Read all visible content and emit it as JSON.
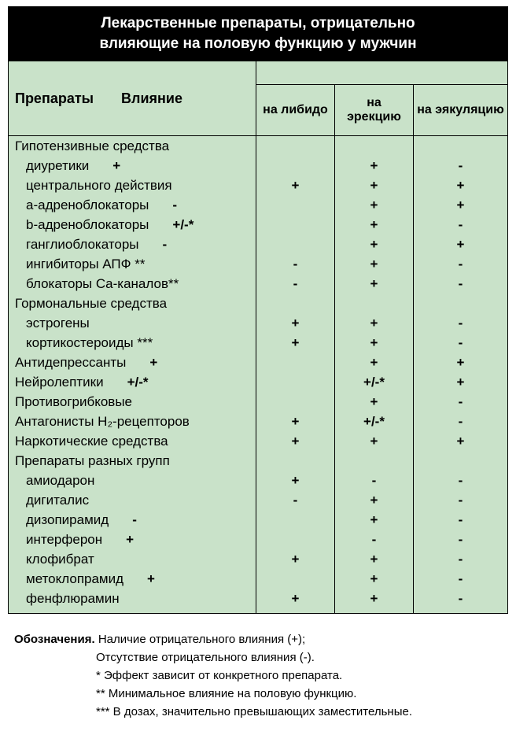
{
  "title_line1": "Лекарственные препараты, отрицательно",
  "title_line2": "влияющие на половую функцию у мужчин",
  "header": {
    "drugs": "Препараты",
    "influence": "Влияние",
    "libido": "на либидо",
    "erection": "на эрекцию",
    "ejaculation": "на эякуляцию"
  },
  "colors": {
    "table_bg": "#c9e2c9",
    "title_bg": "#000000",
    "title_fg": "#ffffff",
    "border": "#000000"
  },
  "rows": [
    {
      "name": "Гипотензивные средства",
      "group": true,
      "indent": false,
      "inline": "",
      "lib": "",
      "ere": "",
      "eja": ""
    },
    {
      "name": "диуретики",
      "group": false,
      "indent": true,
      "inline": "+",
      "lib": "",
      "ere": "+",
      "eja": "-"
    },
    {
      "name": "центрального действия",
      "group": false,
      "indent": true,
      "inline": "",
      "lib": "+",
      "ere": "+",
      "eja": "+"
    },
    {
      "name": "a-адреноблокаторы",
      "group": false,
      "indent": true,
      "inline": "-",
      "lib": "",
      "ere": "+",
      "eja": "+"
    },
    {
      "name": "b-адреноблокаторы",
      "group": false,
      "indent": true,
      "inline": "+/-*",
      "lib": "",
      "ere": "+",
      "eja": "-"
    },
    {
      "name": "ганглиоблокаторы",
      "group": false,
      "indent": true,
      "inline": "-",
      "lib": "",
      "ere": "+",
      "eja": "+"
    },
    {
      "name": "ингибиторы АПФ **",
      "group": false,
      "indent": true,
      "inline": "",
      "lib": "-",
      "ere": "+",
      "eja": "-"
    },
    {
      "name": "блокаторы Ca-каналов**",
      "group": false,
      "indent": true,
      "inline": "",
      "lib": "-",
      "ere": "+",
      "eja": "-"
    },
    {
      "name": "Гормональные средства",
      "group": true,
      "indent": false,
      "inline": "",
      "lib": "",
      "ere": "",
      "eja": ""
    },
    {
      "name": "эстрогены",
      "group": false,
      "indent": true,
      "inline": "",
      "lib": "+",
      "ere": "+",
      "eja": "-"
    },
    {
      "name": "кортикостероиды ***",
      "group": false,
      "indent": true,
      "inline": "",
      "lib": "+",
      "ere": "+",
      "eja": "-"
    },
    {
      "name": "Антидепрессанты",
      "group": false,
      "indent": false,
      "inline": "+",
      "lib": "",
      "ere": "+",
      "eja": "+"
    },
    {
      "name": "Нейролептики",
      "group": false,
      "indent": false,
      "inline": "+/-*",
      "lib": "",
      "ere": "+/-*",
      "eja": "+"
    },
    {
      "name": "Противогрибковые",
      "group": false,
      "indent": false,
      "inline": "",
      "lib": "",
      "ere": "+",
      "eja": "-"
    },
    {
      "name": "Антагонисты H₂-рецепторов",
      "group": false,
      "indent": false,
      "inline": "",
      "lib": "+",
      "ere": "+/-*",
      "eja": "-"
    },
    {
      "name": "Наркотические средства",
      "group": false,
      "indent": false,
      "inline": "",
      "lib": "+",
      "ere": "+",
      "eja": "+"
    },
    {
      "name": "Препараты разных групп",
      "group": true,
      "indent": false,
      "inline": "",
      "lib": "",
      "ere": "",
      "eja": ""
    },
    {
      "name": "амиодарон",
      "group": false,
      "indent": true,
      "inline": "",
      "lib": "+",
      "ere": "-",
      "eja": "-"
    },
    {
      "name": "дигиталис",
      "group": false,
      "indent": true,
      "inline": "",
      "lib": "-",
      "ere": "+",
      "eja": "-"
    },
    {
      "name": "дизопирамид",
      "group": false,
      "indent": true,
      "inline": "-",
      "lib": "",
      "ere": "+",
      "eja": "-"
    },
    {
      "name": "интерферон",
      "group": false,
      "indent": true,
      "inline": "+",
      "lib": "",
      "ere": "-",
      "eja": "-"
    },
    {
      "name": "клофибрат",
      "group": false,
      "indent": true,
      "inline": "",
      "lib": "+",
      "ere": "+",
      "eja": "-"
    },
    {
      "name": "метоклопрамид",
      "group": false,
      "indent": true,
      "inline": "+",
      "lib": "",
      "ere": "+",
      "eja": "-"
    },
    {
      "name": "фенфлюрамин",
      "group": false,
      "indent": true,
      "inline": "",
      "lib": "+",
      "ere": "+",
      "eja": "-"
    }
  ],
  "footnotes": {
    "f1_label": "Обозначения.",
    "f1": "Наличие отрицательного влияния (+);",
    "f2": "Отсутствие отрицательного влияния (-).",
    "f3": "* Эффект зависит от конкретного препарата.",
    "f4": "** Минимальное влияние на половую функцию.",
    "f5": "*** В дозах, значительно превышающих заместительные."
  }
}
